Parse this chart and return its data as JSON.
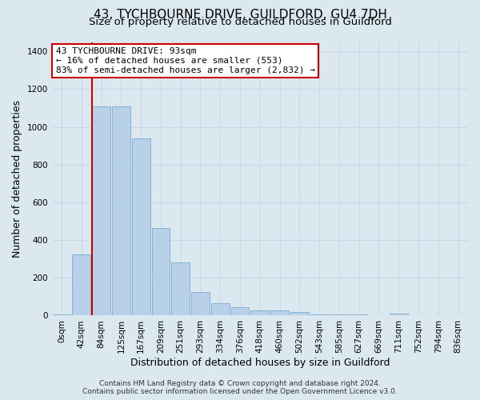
{
  "title": "43, TYCHBOURNE DRIVE, GUILDFORD, GU4 7DH",
  "subtitle": "Size of property relative to detached houses in Guildford",
  "xlabel": "Distribution of detached houses by size in Guildford",
  "ylabel": "Number of detached properties",
  "bar_labels": [
    "0sqm",
    "42sqm",
    "84sqm",
    "125sqm",
    "167sqm",
    "209sqm",
    "251sqm",
    "293sqm",
    "334sqm",
    "376sqm",
    "418sqm",
    "460sqm",
    "502sqm",
    "543sqm",
    "585sqm",
    "627sqm",
    "669sqm",
    "711sqm",
    "752sqm",
    "794sqm",
    "836sqm"
  ],
  "bar_values": [
    5,
    325,
    1110,
    1110,
    940,
    465,
    280,
    125,
    65,
    45,
    27,
    27,
    17,
    5,
    5,
    5,
    0,
    12,
    0,
    0,
    0
  ],
  "bar_color": "#b8d0e8",
  "bar_edge_color": "#7aadd4",
  "vline_color": "#cc0000",
  "annotation_text": "43 TYCHBOURNE DRIVE: 93sqm\n← 16% of detached houses are smaller (553)\n83% of semi-detached houses are larger (2,832) →",
  "annotation_box_color": "#ffffff",
  "annotation_box_edge": "#cc0000",
  "ylim": [
    0,
    1450
  ],
  "yticks": [
    0,
    200,
    400,
    600,
    800,
    1000,
    1200,
    1400
  ],
  "grid_color": "#c8d8e8",
  "bg_color": "#dce8f0",
  "footer_line1": "Contains HM Land Registry data © Crown copyright and database right 2024.",
  "footer_line2": "Contains public sector information licensed under the Open Government Licence v3.0.",
  "title_fontsize": 11,
  "subtitle_fontsize": 9.5,
  "xlabel_fontsize": 9,
  "ylabel_fontsize": 9,
  "tick_fontsize": 7.5,
  "footer_fontsize": 6.5,
  "vline_bar_index": 2
}
